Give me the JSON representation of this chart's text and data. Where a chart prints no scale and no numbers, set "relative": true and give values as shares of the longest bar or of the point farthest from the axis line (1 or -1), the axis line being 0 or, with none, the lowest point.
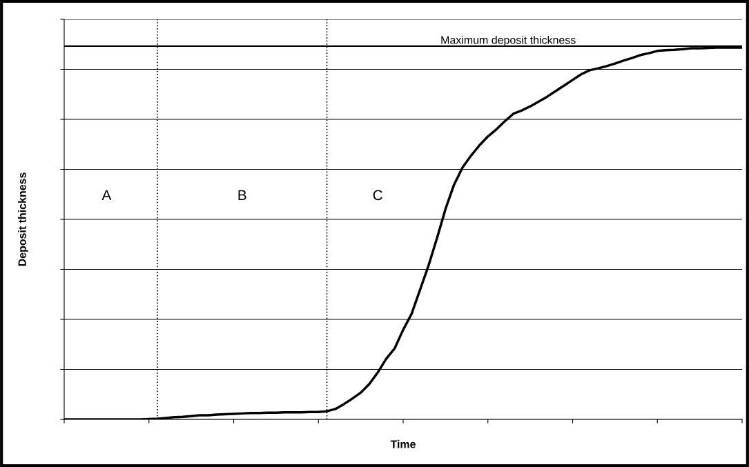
{
  "chart_data": {
    "type": "line",
    "relative": true,
    "xlabel": "Time",
    "ylabel": "Deposit thickness",
    "categories": [
      null,
      null,
      null,
      null,
      null,
      null,
      null,
      null,
      null,
      null,
      null,
      null,
      null,
      null,
      null,
      null,
      null,
      null,
      null,
      null,
      null,
      null,
      null,
      null,
      null,
      null,
      null,
      null,
      null,
      null,
      null,
      null,
      null,
      null,
      null,
      null,
      null,
      null,
      null,
      null,
      null,
      null,
      null,
      null,
      null,
      null,
      null,
      null,
      null,
      null,
      null,
      null,
      null,
      null,
      null,
      null,
      null,
      null,
      null,
      null,
      null,
      null,
      null,
      null,
      null,
      null,
      null,
      null,
      null,
      null,
      null,
      null,
      null,
      null,
      null,
      null,
      null,
      null,
      null,
      null,
      null
    ],
    "series": [
      {
        "color": "#000000",
        "values": [
          0,
          0,
          0,
          0,
          0,
          0,
          0,
          0,
          0,
          0,
          0.001,
          0.002,
          0.004,
          0.006,
          0.007,
          0.009,
          0.011,
          0.011,
          0.013,
          0.014,
          0.015,
          0.016,
          0.017,
          0.017,
          0.018,
          0.018,
          0.019,
          0.019,
          0.019,
          0.02,
          0.02,
          0.022,
          0.028,
          0.041,
          0.056,
          0.072,
          0.095,
          0.126,
          0.163,
          0.191,
          0.241,
          0.284,
          0.349,
          0.414,
          0.488,
          0.566,
          0.631,
          0.677,
          0.709,
          0.737,
          0.761,
          0.78,
          0.802,
          0.822,
          0.831,
          0.842,
          0.855,
          0.868,
          0.883,
          0.898,
          0.913,
          0.928,
          0.939,
          0.944,
          0.95,
          0.957,
          0.965,
          0.972,
          0.98,
          0.985,
          0.991,
          0.993,
          0.994,
          0.996,
          0.998,
          0.998,
          0.999,
          1,
          1,
          1,
          1
        ]
      }
    ],
    "ref_lines": [
      {
        "axis": "y",
        "value": 1.004,
        "label": "Maximum deposit thickness",
        "color": "#000000",
        "line_style": "solid"
      }
    ],
    "annotations": [
      "A",
      "B",
      "C"
    ],
    "grid": "y",
    "legend": false,
    "marker": "none",
    "line_style": "solid"
  }
}
